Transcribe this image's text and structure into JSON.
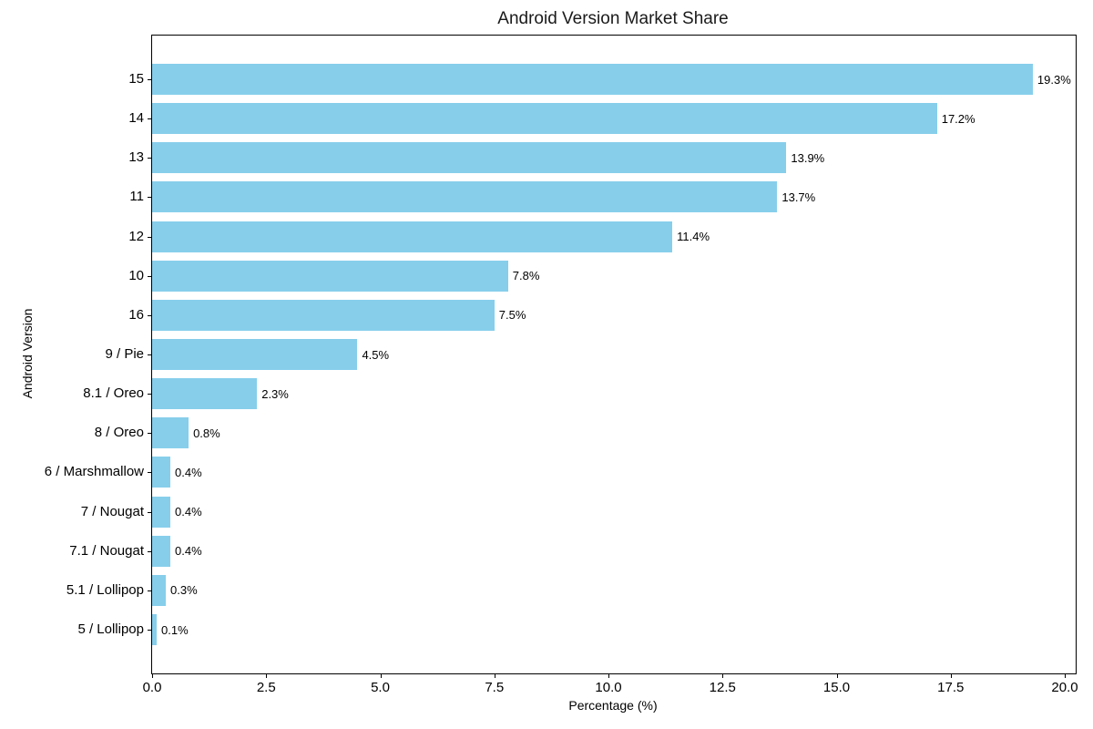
{
  "figure": {
    "background": "#ffffff"
  },
  "chart_data": {
    "type": "bar",
    "orientation": "horizontal",
    "title": "Android Version Market Share",
    "xlabel": "Percentage (%)",
    "ylabel": "Android Version",
    "categories": [
      "15",
      "14",
      "13",
      "11",
      "12",
      "10",
      "16",
      "9 / Pie",
      "8.1 / Oreo",
      "8 / Oreo",
      "6 / Marshmallow",
      "7 / Nougat",
      "7.1 / Nougat",
      "5.1 / Lollipop",
      "5 / Lollipop"
    ],
    "values": [
      19.3,
      17.2,
      13.9,
      13.7,
      11.4,
      7.8,
      7.5,
      4.5,
      2.3,
      0.8,
      0.4,
      0.4,
      0.4,
      0.3,
      0.1
    ],
    "value_labels": [
      "19.3%",
      "17.2%",
      "13.9%",
      "13.7%",
      "11.4%",
      "7.8%",
      "7.5%",
      "4.5%",
      "2.3%",
      "0.8%",
      "0.4%",
      "0.4%",
      "0.4%",
      "0.3%",
      "0.1%"
    ],
    "x_tick_labels": [
      "0.0",
      "2.5",
      "5.0",
      "7.5",
      "10.0",
      "12.5",
      "15.0",
      "17.5",
      "20.0"
    ],
    "x_tick_values": [
      0,
      2.5,
      5,
      7.5,
      10,
      12.5,
      15,
      17.5,
      20
    ],
    "xlim": [
      0,
      20.24
    ],
    "bar_color": "#87CEEB",
    "text_color": "#000000",
    "grid": false,
    "legend": null
  }
}
